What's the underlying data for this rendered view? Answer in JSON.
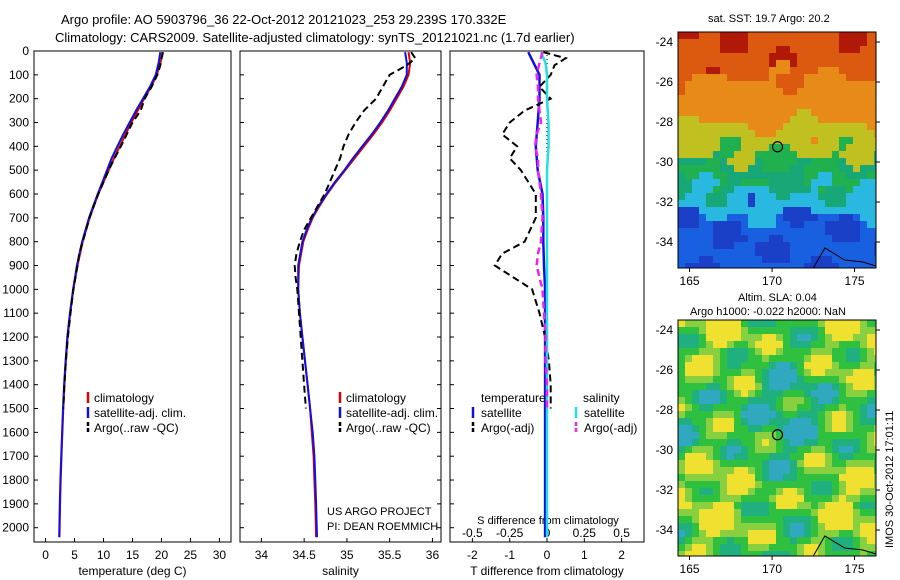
{
  "header": {
    "title_line1": "Argo profile: AO 5903796_36 22-Oct-2012 20121023_253 29.239S 170.332E",
    "title_line2": "Climatology: CARS2009. Satellite-adjusted climatology: synTS_20121021.nc (1.7d earlier)"
  },
  "colors": {
    "climatology": "#e00000",
    "satellite": "#1010e0",
    "argo": "#000000",
    "salinity_satellite": "#22e0e0",
    "salinity_argo": "#ee22ee"
  },
  "footer": {
    "project_line1": "US ARGO PROJECT",
    "project_line2": "PI: DEAN ROEMMICH",
    "stamp": "IMOS 30-Oct-2012 17:01:11"
  },
  "maps": {
    "sst": {
      "title": "sat. SST: 19.7  Argo: 20.2",
      "x_ticks": [
        "165",
        "170",
        "175"
      ],
      "y_ticks": [
        "-24",
        "-26",
        "-28",
        "-30",
        "-32",
        "-34"
      ]
    },
    "sla": {
      "title_line1": "Altim. SLA: 0.04",
      "title_line2": "Argo h1000: -0.022 h2000: NaN",
      "x_ticks": [
        "165",
        "170",
        "175"
      ],
      "y_ticks": [
        "-24",
        "-26",
        "-28",
        "-30",
        "-32",
        "-34"
      ]
    }
  },
  "chart_data": [
    {
      "type": "line",
      "panel": "temperature",
      "xlabel": "temperature (deg C)",
      "ylabel": "",
      "xlim": [
        -2,
        32
      ],
      "ylim": [
        2060,
        0
      ],
      "x_ticks": [
        "0",
        "5",
        "10",
        "15",
        "20",
        "25",
        "30"
      ],
      "y_ticks": [
        "0",
        "100",
        "200",
        "300",
        "400",
        "500",
        "600",
        "700",
        "800",
        "900",
        "1000",
        "1100",
        "1200",
        "1300",
        "1400",
        "1500",
        "1600",
        "1700",
        "1800",
        "1900",
        "2000"
      ],
      "legend": [
        "climatology",
        "satellite-adj. clim.",
        "Argo(..raw -QC)"
      ],
      "series": [
        {
          "name": "climatology",
          "depth": [
            5,
            50,
            100,
            150,
            200,
            250,
            300,
            350,
            400,
            450,
            500,
            550,
            600,
            700,
            800,
            900,
            1000,
            1100,
            1200,
            1300,
            1400,
            1500,
            1600,
            1700,
            1800,
            1900,
            2040
          ],
          "values": [
            20.3,
            19.8,
            19.2,
            18.2,
            17.0,
            15.9,
            14.8,
            13.8,
            12.8,
            11.8,
            10.9,
            10.0,
            9.1,
            7.6,
            6.4,
            5.5,
            4.8,
            4.25,
            3.8,
            3.5,
            3.25,
            3.05,
            2.9,
            2.75,
            2.6,
            2.5,
            2.4
          ]
        },
        {
          "name": "satellite-adj. clim.",
          "depth": [
            5,
            50,
            100,
            150,
            200,
            250,
            300,
            350,
            400,
            450,
            500,
            550,
            600,
            700,
            800,
            900,
            1000,
            1100,
            1200,
            1300,
            1400,
            1500,
            1600,
            1700,
            1800,
            1900,
            2040
          ],
          "values": [
            19.8,
            19.5,
            19.0,
            18.0,
            16.8,
            15.6,
            14.5,
            13.4,
            12.4,
            11.4,
            10.6,
            9.8,
            9.0,
            7.5,
            6.3,
            5.4,
            4.75,
            4.2,
            3.75,
            3.45,
            3.2,
            3.0,
            2.85,
            2.7,
            2.55,
            2.45,
            2.35
          ]
        },
        {
          "name": "Argo(..raw -QC)",
          "depth": [
            5,
            30,
            60,
            100,
            150,
            200,
            250,
            300,
            350,
            400,
            450,
            500,
            550,
            600,
            650,
            700,
            750,
            800,
            850,
            900,
            1000,
            1100,
            1200,
            1300,
            1400,
            1500
          ],
          "values": [
            20.2,
            20.0,
            19.8,
            19.3,
            18.3,
            17.1,
            16.4,
            15.0,
            14.0,
            13.0,
            11.9,
            10.9,
            10.0,
            9.1,
            8.3,
            7.6,
            7.0,
            6.4,
            5.8,
            5.5,
            4.8,
            4.3,
            3.85,
            3.5,
            3.25,
            3.05
          ]
        }
      ]
    },
    {
      "type": "line",
      "panel": "salinity",
      "xlabel": "salinity",
      "ylabel": "",
      "xlim": [
        33.75,
        36.1
      ],
      "ylim": [
        2060,
        0
      ],
      "x_ticks": [
        "34",
        "34.5",
        "35",
        "35.5",
        "36"
      ],
      "legend": [
        "climatology",
        "satellite-adj. clim.",
        "Argo(..raw -QC)"
      ],
      "series": [
        {
          "name": "climatology",
          "depth": [
            5,
            50,
            100,
            150,
            200,
            250,
            300,
            350,
            400,
            450,
            500,
            550,
            600,
            650,
            700,
            750,
            800,
            900,
            1000,
            1100,
            1200,
            1300,
            1400,
            1500,
            1600,
            1700,
            1800,
            1900,
            2040
          ],
          "values": [
            35.72,
            35.74,
            35.72,
            35.66,
            35.58,
            35.5,
            35.41,
            35.31,
            35.2,
            35.09,
            34.98,
            34.87,
            34.77,
            34.68,
            34.6,
            34.54,
            34.49,
            34.44,
            34.43,
            34.45,
            34.48,
            34.51,
            34.54,
            34.57,
            34.59,
            34.61,
            34.62,
            34.63,
            34.64
          ]
        },
        {
          "name": "satellite-adj. clim.",
          "depth": [
            5,
            50,
            100,
            150,
            200,
            250,
            300,
            350,
            400,
            450,
            500,
            550,
            600,
            650,
            700,
            750,
            800,
            900,
            1000,
            1100,
            1200,
            1300,
            1400,
            1500,
            1600,
            1700,
            1800,
            1900,
            2040
          ],
          "values": [
            35.68,
            35.7,
            35.7,
            35.64,
            35.56,
            35.48,
            35.39,
            35.29,
            35.18,
            35.07,
            34.97,
            34.86,
            34.76,
            34.67,
            34.59,
            34.53,
            34.48,
            34.43,
            34.43,
            34.45,
            34.48,
            34.51,
            34.54,
            34.57,
            34.6,
            34.62,
            34.63,
            34.64,
            34.65
          ]
        },
        {
          "name": "Argo(..raw -QC)",
          "depth": [
            5,
            30,
            60,
            100,
            150,
            200,
            250,
            300,
            350,
            400,
            450,
            500,
            550,
            600,
            650,
            700,
            750,
            800,
            850,
            900,
            950,
            1000,
            1100,
            1200,
            1300,
            1400,
            1500
          ],
          "values": [
            35.75,
            35.8,
            35.7,
            35.5,
            35.42,
            35.34,
            35.2,
            35.1,
            35.02,
            34.96,
            34.92,
            34.86,
            34.8,
            34.74,
            34.66,
            34.58,
            34.5,
            34.45,
            34.41,
            34.39,
            34.4,
            34.42,
            34.44,
            34.46,
            34.48,
            34.5,
            34.52
          ]
        }
      ]
    },
    {
      "type": "line",
      "panel": "difference",
      "xlabel": "T difference from climatology",
      "xlabel_top": "S difference from climatology",
      "ylabel": "",
      "xlim": [
        -2.6,
        2.6
      ],
      "ylim": [
        2060,
        0
      ],
      "x_ticks": [
        "-2",
        "-1",
        "0",
        "1",
        "2"
      ],
      "x_ticks_top": [
        "-0.5",
        "-0.25",
        "0",
        "0.25",
        "0.5"
      ],
      "legend_title_left": "temperature",
      "legend_title_right": "salinity",
      "legend": [
        "satellite",
        "Argo(-adj)",
        "satellite",
        "Argo(-adj)"
      ],
      "series": [
        {
          "name": "satellite",
          "group": "temperature",
          "depth": [
            5,
            100,
            200,
            300,
            400,
            500,
            600,
            700,
            800,
            900,
            1000,
            1100,
            1200,
            1300,
            1400,
            1500,
            1600,
            1700,
            1800,
            1900,
            2040
          ],
          "values": [
            -0.5,
            -0.2,
            -0.2,
            -0.25,
            -0.3,
            -0.25,
            -0.12,
            -0.1,
            -0.1,
            -0.08,
            -0.05,
            -0.05,
            -0.05,
            -0.05,
            -0.05,
            -0.05,
            -0.05,
            -0.05,
            -0.05,
            -0.05,
            -0.05
          ]
        },
        {
          "name": "Argo(-adj)",
          "group": "temperature",
          "depth": [
            5,
            30,
            60,
            100,
            150,
            200,
            250,
            300,
            350,
            400,
            450,
            500,
            600,
            700,
            800,
            850,
            900,
            950,
            1000,
            1100,
            1200,
            1300,
            1400,
            1500
          ],
          "values": [
            -0.1,
            0.5,
            0.2,
            0.1,
            -0.2,
            0.1,
            -0.6,
            -1.0,
            -1.2,
            -0.8,
            -1.0,
            -0.7,
            -0.3,
            -0.3,
            -0.6,
            -1.2,
            -1.4,
            -0.9,
            -0.4,
            -0.2,
            -0.05,
            0.05,
            0.1,
            0.1
          ]
        },
        {
          "name": "satellite",
          "group": "salinity",
          "depth": [
            5,
            50,
            100,
            200,
            300,
            400,
            500,
            600,
            700,
            800,
            900,
            1000,
            1200,
            1400,
            1600,
            1800,
            2040
          ],
          "values": [
            -0.04,
            -0.01,
            0.0,
            0.0,
            0.01,
            0.01,
            0.0,
            0.0,
            0.0,
            0.0,
            0.0,
            0.0,
            0.0,
            0.0,
            0.0,
            0.0,
            0.0
          ]
        },
        {
          "name": "Argo(-adj)",
          "group": "salinity",
          "depth": [
            5,
            50,
            100,
            150,
            200,
            250,
            300,
            350,
            400,
            450,
            500,
            600,
            700,
            800,
            850,
            900,
            950,
            1000,
            1100,
            1200,
            1300,
            1400,
            1500
          ],
          "values": [
            -0.03,
            -0.05,
            -0.07,
            -0.06,
            -0.06,
            -0.05,
            -0.04,
            -0.07,
            -0.08,
            -0.06,
            -0.06,
            -0.04,
            -0.03,
            -0.04,
            -0.06,
            -0.07,
            -0.05,
            -0.03,
            -0.02,
            -0.01,
            -0.01,
            0.0,
            0.0
          ]
        }
      ]
    }
  ]
}
